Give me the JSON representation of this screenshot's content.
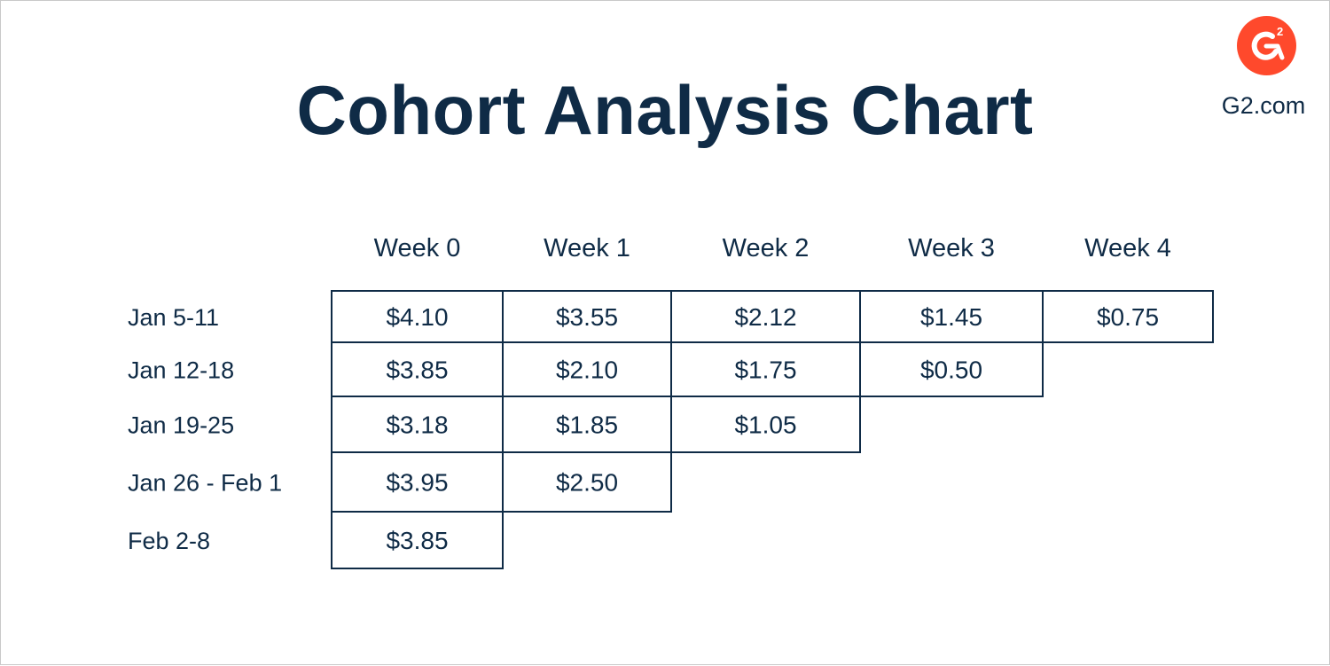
{
  "header": {
    "brand_text": "G2.com",
    "logo_icon": "g2-logo-icon",
    "logo_color": "#ff492c",
    "ink_color": "#0f2b46"
  },
  "chart_data": {
    "type": "table",
    "title": "Cohort Analysis Chart",
    "columns": [
      "Week 0",
      "Week 1",
      "Week 2",
      "Week 3",
      "Week 4"
    ],
    "rows": [
      {
        "label": "Jan 5-11",
        "values": [
          "$4.10",
          "$3.55",
          "$2.12",
          "$1.45",
          "$0.75"
        ]
      },
      {
        "label": "Jan 12-18",
        "values": [
          "$3.85",
          "$2.10",
          "$1.75",
          "$0.50"
        ]
      },
      {
        "label": "Jan 19-25",
        "values": [
          "$3.18",
          "$1.85",
          "$1.05"
        ]
      },
      {
        "label": "Jan 26 - Feb 1",
        "values": [
          "$3.95",
          "$2.50"
        ]
      },
      {
        "label": "Feb 2-8",
        "values": [
          "$3.85"
        ]
      }
    ]
  }
}
